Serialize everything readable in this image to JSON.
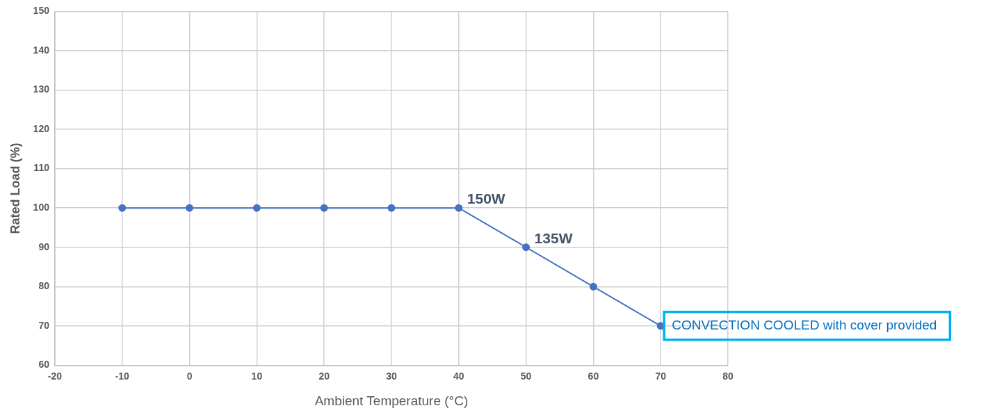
{
  "chart_data": {
    "type": "line",
    "xlabel": "Ambient Temperature (°C)",
    "ylabel": "Rated Load (%)",
    "x": [
      -10,
      0,
      10,
      20,
      30,
      40,
      50,
      60,
      70
    ],
    "series": [
      {
        "color": "#4472c4",
        "values": [
          100,
          100,
          100,
          100,
          100,
          100,
          90,
          80,
          70
        ]
      }
    ],
    "xlim": [
      -20,
      80
    ],
    "xticks": [
      -20,
      -10,
      0,
      10,
      20,
      30,
      40,
      50,
      60,
      70,
      80
    ],
    "ylim": [
      60,
      150
    ],
    "yticks": [
      60,
      70,
      80,
      90,
      100,
      110,
      120,
      130,
      140,
      150
    ],
    "grid": true,
    "legend": false,
    "marker": "circle",
    "line_style": "solid",
    "annotations": [
      {
        "text": "150W",
        "x": 40,
        "y": 100
      },
      {
        "text": "135W",
        "x": 50,
        "y": 90
      },
      {
        "text": "CONVECTION COOLED with cover provided",
        "x": 70,
        "y": 70
      }
    ]
  }
}
